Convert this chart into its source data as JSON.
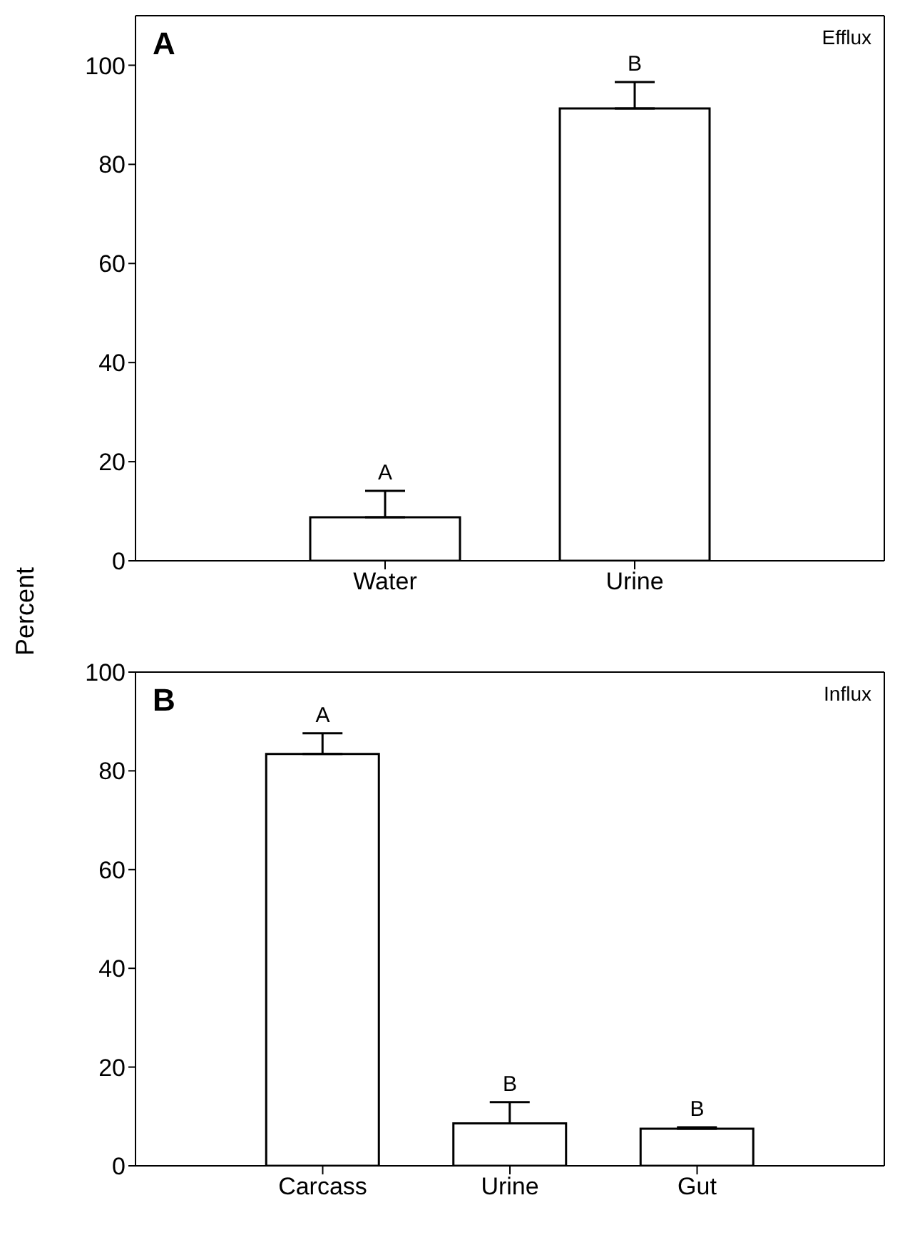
{
  "chart_data": [
    {
      "type": "bar",
      "title": "A",
      "ylabel": "Percent",
      "categories": [
        "Water",
        "Urine"
      ],
      "values": [
        8.8,
        91.3
      ],
      "errors": [
        [
          8.8,
          14.1
        ],
        [
          91.3,
          96.6
        ]
      ],
      "color": "#ffffff",
      "ylim": [
        0,
        110
      ],
      "yticks": [
        0,
        20,
        40,
        60,
        80,
        100
      ],
      "annotations": [
        "Efflux",
        {
          "text": "A",
          "x": "Water",
          "y": 14.1
        },
        {
          "text": "B",
          "x": "Urine",
          "y": 96.6
        }
      ]
    },
    {
      "type": "bar",
      "title": "B",
      "categories": [
        "Carcass",
        "Urine",
        "Gut"
      ],
      "values": [
        83.4,
        8.6,
        7.5
      ],
      "errors": [
        [
          83.4,
          87.6
        ],
        [
          8.6,
          12.9
        ],
        [
          7.5,
          7.8
        ]
      ],
      "color": "#ffffff",
      "ylim": [
        0,
        100
      ],
      "yticks": [
        0,
        20,
        40,
        60,
        80,
        100
      ],
      "annotations": [
        "Influx",
        {
          "text": "A",
          "x": "Carcass",
          "y": 87.6
        },
        {
          "text": "B",
          "x": "Urine",
          "y": 12.9
        },
        {
          "text": "B",
          "x": "Gut",
          "y": 7.8
        }
      ]
    }
  ]
}
